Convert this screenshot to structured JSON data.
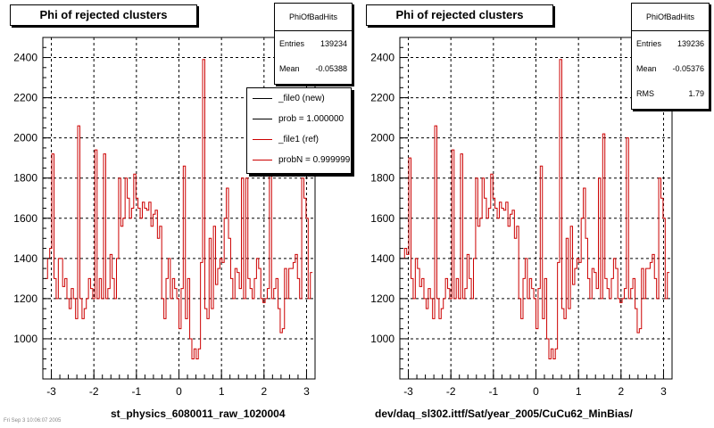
{
  "chart_data": [
    {
      "type": "bar",
      "style": "step-histogram",
      "title": "Phi of rejected clusters",
      "xlabel": "st_physics_6080011_raw_1020004",
      "ylabel": "",
      "xlim": [
        -3.2,
        3.2
      ],
      "ylim": [
        800,
        2500
      ],
      "xticks": [
        -3,
        -2,
        -1,
        0,
        1,
        2,
        3
      ],
      "yticks": [
        1000,
        1200,
        1400,
        1600,
        1800,
        2000,
        2200,
        2400
      ],
      "grid": true,
      "line_color": "#cc0000",
      "stats": {
        "name": "PhiOfBadHits",
        "rows": [
          {
            "label": "Entries",
            "value": "139234"
          },
          {
            "label": "Mean",
            "value": "-0.05388"
          }
        ]
      },
      "legend": {
        "placement": "top-right",
        "entries": [
          {
            "label": "_file0 (new)",
            "color": "#000000"
          },
          {
            "label": "prob = 1.000000",
            "color": "#000000"
          },
          {
            "label": "_file1 (ref)",
            "color": "#cc0000"
          },
          {
            "label": "probN = 0.999999",
            "color": "#cc0000"
          }
        ]
      },
      "series": [
        {
          "bin_edges": [
            -3.14,
            3.14
          ],
          "values": [
            1300,
            1400,
            1450,
            1920,
            1300,
            1200,
            1400,
            1400,
            1260,
            1300,
            1200,
            1150,
            1250,
            1200,
            1100,
            2060,
            1200,
            1100,
            1150,
            1200,
            1300,
            1250,
            1200,
            1940,
            1200,
            1300,
            1200,
            1920,
            1200,
            1250,
            1420,
            1300,
            1200,
            1400,
            1800,
            1560,
            1600,
            1800,
            1700,
            1600,
            1650,
            1820,
            1700,
            1650,
            1600,
            1680,
            1650,
            1640,
            1680,
            1560,
            1620,
            1640,
            1500,
            1560,
            1200,
            1100,
            1300,
            1400,
            1200,
            1300,
            1250,
            1200,
            1050,
            1250,
            1860,
            1100,
            1300,
            1000,
            900,
            950,
            900,
            950,
            1380,
            2390,
            1150,
            1100,
            1500,
            1150,
            1560,
            1270,
            1350,
            1400,
            1380,
            1600,
            1750,
            1500,
            1300,
            1200,
            1350,
            1330,
            1250,
            1800,
            1200,
            1800,
            1300,
            1250,
            1200,
            1300,
            1400,
            1350,
            1200,
            1180,
            1200,
            1250,
            1850,
            1200,
            1250,
            1300,
            1150,
            1030,
            1050,
            1350,
            1200,
            1350,
            1350,
            1380,
            1420,
            1300,
            1200,
            1800,
            1700,
            1600,
            1200,
            1330
          ]
        }
      ]
    },
    {
      "type": "bar",
      "style": "step-histogram",
      "title": "Phi of rejected clusters",
      "xlabel": "dev/daq_sl302.ittf/Sat/year_2005/CuCu62_MinBias/",
      "ylabel": "",
      "xlim": [
        -3.2,
        3.2
      ],
      "ylim": [
        800,
        2500
      ],
      "xticks": [
        -3,
        -2,
        -1,
        0,
        1,
        2,
        3
      ],
      "yticks": [
        1000,
        1200,
        1400,
        1600,
        1800,
        2000,
        2200,
        2400
      ],
      "grid": true,
      "line_color": "#cc0000",
      "stats": {
        "name": "PhiOfBadHits",
        "rows": [
          {
            "label": "Entries",
            "value": "139236"
          },
          {
            "label": "Mean",
            "value": "-0.05376"
          },
          {
            "label": "RMS",
            "value": "1.79"
          }
        ]
      },
      "series": [
        {
          "bin_edges": [
            -3.14,
            3.14
          ],
          "values": [
            1400,
            1450,
            1420,
            1900,
            1300,
            1200,
            1400,
            1350,
            1260,
            1300,
            1200,
            1150,
            1250,
            1200,
            1100,
            2060,
            1200,
            1100,
            1150,
            1200,
            1300,
            1250,
            1200,
            1940,
            1200,
            1300,
            1200,
            1920,
            1200,
            1250,
            1420,
            1300,
            1200,
            1400,
            1800,
            1560,
            1600,
            1800,
            1700,
            1600,
            1650,
            1820,
            1700,
            1650,
            1600,
            1680,
            1650,
            1640,
            1680,
            1560,
            1620,
            1640,
            1500,
            1560,
            1200,
            1100,
            1300,
            1400,
            1200,
            1300,
            1250,
            1200,
            1050,
            1250,
            1860,
            1100,
            1300,
            1000,
            900,
            950,
            900,
            950,
            1380,
            2390,
            1150,
            1100,
            1500,
            1150,
            1560,
            1270,
            1350,
            1400,
            1380,
            1600,
            1750,
            1500,
            1300,
            1200,
            1350,
            1330,
            1250,
            1800,
            1200,
            2020,
            1300,
            1250,
            1200,
            1300,
            1400,
            1350,
            1200,
            1180,
            1200,
            1250,
            2000,
            1200,
            1250,
            1300,
            1150,
            1030,
            1050,
            1350,
            1200,
            1350,
            1350,
            1380,
            1420,
            1300,
            1200,
            1800,
            1700,
            1600,
            1200,
            1330
          ]
        }
      ]
    }
  ],
  "footer": "Fri Sep 3 10:06:07 2005"
}
